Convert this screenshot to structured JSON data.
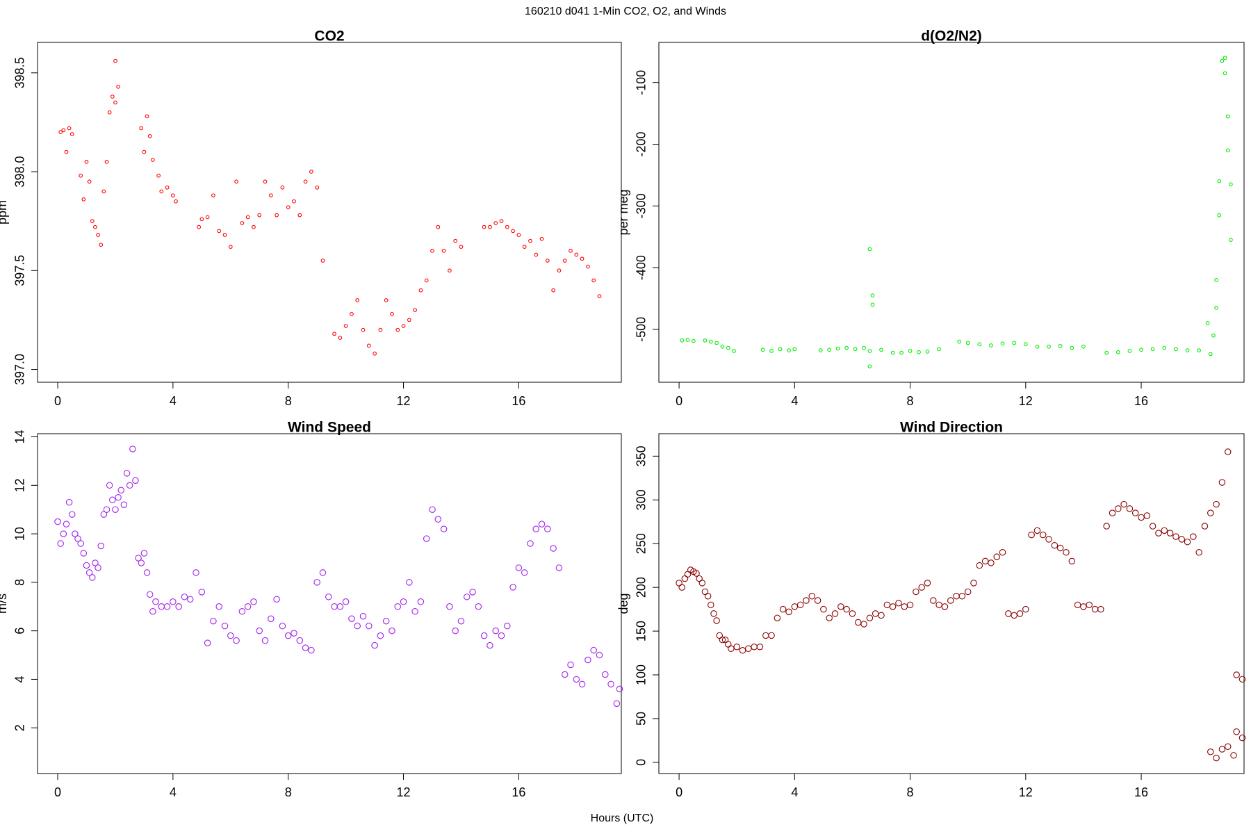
{
  "title": "160210   d041   1-Min CO2, O2, and Winds",
  "xlabel": "Hours (UTC)",
  "chart_data": [
    {
      "type": "scatter",
      "title": "CO2",
      "ylabel": "ppm",
      "color": "#ff0000",
      "xlim": [
        -0.7,
        19.56
      ],
      "xticks": [
        0,
        4,
        8,
        12,
        16
      ],
      "ylim": [
        396.935,
        398.654
      ],
      "yticks": [
        {
          "value": 397,
          "label": "397.0"
        },
        397.5,
        {
          "value": 398,
          "label": "398.0"
        },
        398.5
      ],
      "x": [
        0.1,
        0.2,
        0.3,
        0.4,
        0.5,
        0.8,
        0.9,
        1.0,
        1.1,
        1.2,
        1.3,
        1.4,
        1.5,
        1.6,
        1.7,
        1.8,
        1.9,
        2.0,
        2.1,
        2.0,
        2.9,
        3.0,
        3.1,
        3.2,
        3.3,
        3.5,
        3.6,
        3.8,
        4.0,
        4.1,
        4.9,
        5.0,
        5.2,
        5.4,
        5.6,
        5.8,
        6.0,
        6.2,
        6.4,
        6.6,
        6.8,
        7.0,
        7.2,
        7.4,
        7.6,
        7.8,
        8.0,
        8.2,
        8.4,
        8.6,
        8.8,
        9.0,
        9.2,
        9.6,
        9.8,
        10.0,
        10.2,
        10.4,
        10.6,
        10.8,
        11.0,
        11.2,
        11.4,
        11.6,
        11.8,
        12.0,
        12.2,
        12.4,
        12.6,
        12.8,
        13.0,
        13.2,
        13.4,
        13.6,
        13.8,
        14.0,
        14.8,
        15.0,
        15.2,
        15.4,
        15.6,
        15.8,
        16.0,
        16.2,
        16.4,
        16.6,
        16.8,
        17.0,
        17.2,
        17.4,
        17.6,
        17.8,
        18.0,
        18.2,
        18.4,
        18.6,
        18.8
      ],
      "values": [
        398.2,
        398.21,
        398.1,
        398.22,
        398.19,
        397.98,
        397.86,
        398.05,
        397.95,
        397.75,
        397.72,
        397.68,
        397.63,
        397.9,
        398.05,
        398.3,
        398.38,
        398.35,
        398.43,
        398.56,
        398.22,
        398.1,
        398.28,
        398.18,
        398.06,
        397.98,
        397.9,
        397.92,
        397.88,
        397.85,
        397.72,
        397.76,
        397.77,
        397.88,
        397.7,
        397.68,
        397.62,
        397.95,
        397.74,
        397.77,
        397.72,
        397.78,
        397.95,
        397.88,
        397.78,
        397.92,
        397.82,
        397.85,
        397.78,
        397.95,
        398.0,
        397.92,
        397.55,
        397.18,
        397.16,
        397.22,
        397.28,
        397.35,
        397.2,
        397.12,
        397.08,
        397.2,
        397.35,
        397.28,
        397.2,
        397.22,
        397.25,
        397.3,
        397.4,
        397.45,
        397.6,
        397.72,
        397.6,
        397.5,
        397.65,
        397.62,
        397.72,
        397.72,
        397.74,
        397.75,
        397.72,
        397.7,
        397.68,
        397.62,
        397.65,
        397.58,
        397.66,
        397.55,
        397.4,
        397.5,
        397.55,
        397.6,
        397.58,
        397.56,
        397.52,
        397.45,
        397.37
      ]
    },
    {
      "type": "scatter",
      "title": "d(O2/N2)",
      "ylabel": "per meg",
      "color": "#00ee00",
      "xlim": [
        -0.7,
        19.56
      ],
      "xticks": [
        0,
        4,
        8,
        12,
        16
      ],
      "ylim": [
        -585.7,
        -35
      ],
      "yticks": [
        -500,
        -400,
        -300,
        -200,
        -100
      ],
      "x": [
        0.1,
        0.3,
        0.5,
        0.9,
        1.1,
        1.3,
        1.5,
        1.7,
        1.9,
        2.9,
        3.2,
        3.5,
        3.8,
        4.0,
        4.9,
        5.2,
        5.5,
        5.8,
        6.1,
        6.4,
        6.6,
        6.6,
        6.7,
        6.7,
        6.6,
        7.0,
        7.4,
        7.7,
        8.0,
        8.3,
        8.6,
        9.0,
        9.7,
        10.0,
        10.4,
        10.8,
        11.2,
        11.6,
        12.0,
        12.4,
        12.8,
        13.2,
        13.6,
        14.0,
        14.8,
        15.2,
        15.6,
        16.0,
        16.4,
        16.8,
        17.2,
        17.6,
        18.0,
        18.3,
        18.5,
        18.6,
        18.6,
        18.7,
        18.7,
        18.8,
        18.9,
        18.9,
        19.0,
        19.0,
        19.1,
        19.1,
        18.4
      ],
      "values": [
        -518,
        -517,
        -519,
        -518,
        -520,
        -522,
        -528,
        -530,
        -535,
        -533,
        -535,
        -532,
        -534,
        -532,
        -534,
        -533,
        -531,
        -530,
        -532,
        -530,
        -535,
        -370,
        -445,
        -460,
        -560,
        -533,
        -538,
        -538,
        -535,
        -537,
        -536,
        -532,
        -520,
        -522,
        -524,
        -526,
        -523,
        -522,
        -524,
        -528,
        -528,
        -527,
        -530,
        -528,
        -538,
        -537,
        -535,
        -533,
        -532,
        -530,
        -532,
        -534,
        -534,
        -490,
        -510,
        -465,
        -420,
        -315,
        -260,
        -65,
        -60,
        -85,
        -155,
        -210,
        -265,
        -355,
        -540
      ]
    },
    {
      "type": "scatter",
      "title": "Wind Speed",
      "ylabel": "m/s",
      "color": "#a020f0",
      "xlim": [
        -0.7,
        19.56
      ],
      "xticks": [
        0,
        4,
        8,
        12,
        16
      ],
      "ylim": [
        0.115,
        14.13
      ],
      "yticks": [
        2,
        4,
        6,
        8,
        10,
        12,
        14
      ],
      "x": [
        0.0,
        0.1,
        0.2,
        0.3,
        0.4,
        0.5,
        0.6,
        0.7,
        0.8,
        0.9,
        1.0,
        1.1,
        1.2,
        1.3,
        1.4,
        1.5,
        1.6,
        1.7,
        1.8,
        1.9,
        2.0,
        2.1,
        2.2,
        2.3,
        2.4,
        2.5,
        2.6,
        2.7,
        2.8,
        2.9,
        3.0,
        3.1,
        3.2,
        3.3,
        3.4,
        3.6,
        3.8,
        4.0,
        4.2,
        4.4,
        4.6,
        4.8,
        5.0,
        5.2,
        5.4,
        5.6,
        5.8,
        6.0,
        6.2,
        6.4,
        6.6,
        6.8,
        7.0,
        7.2,
        7.4,
        7.6,
        7.8,
        8.0,
        8.2,
        8.4,
        8.6,
        8.8,
        9.0,
        9.2,
        9.4,
        9.6,
        9.8,
        10.0,
        10.2,
        10.4,
        10.6,
        10.8,
        11.0,
        11.2,
        11.4,
        11.6,
        11.8,
        12.0,
        12.2,
        12.4,
        12.6,
        12.8,
        13.0,
        13.2,
        13.4,
        13.6,
        13.8,
        14.0,
        14.2,
        14.4,
        14.6,
        14.8,
        15.0,
        15.2,
        15.4,
        15.6,
        15.8,
        16.0,
        16.2,
        16.4,
        16.6,
        16.8,
        17.0,
        17.2,
        17.4,
        17.6,
        17.8,
        18.0,
        18.2,
        18.4,
        18.6,
        18.8,
        19.0,
        19.2,
        19.4,
        19.5
      ],
      "values": [
        10.5,
        9.6,
        10.0,
        10.4,
        11.3,
        10.8,
        10.0,
        9.8,
        9.6,
        9.2,
        8.7,
        8.4,
        8.2,
        8.8,
        8.6,
        9.5,
        10.8,
        11.0,
        12.0,
        11.4,
        11.0,
        11.5,
        11.8,
        11.2,
        12.5,
        12.0,
        13.5,
        12.2,
        9.0,
        8.8,
        9.2,
        8.4,
        7.5,
        6.8,
        7.2,
        7.0,
        7.0,
        7.2,
        7.0,
        7.4,
        7.3,
        8.4,
        7.6,
        5.5,
        6.4,
        7.0,
        6.2,
        5.8,
        5.6,
        6.8,
        7.0,
        7.2,
        6.0,
        5.6,
        6.5,
        7.3,
        6.2,
        5.8,
        5.9,
        5.6,
        5.3,
        5.2,
        8.0,
        8.4,
        7.4,
        7.0,
        7.0,
        7.2,
        6.5,
        6.2,
        6.6,
        6.2,
        5.4,
        5.8,
        6.4,
        6.0,
        7.0,
        7.2,
        8.0,
        6.8,
        7.2,
        9.8,
        11.0,
        10.6,
        10.2,
        7.0,
        6.0,
        6.4,
        7.4,
        7.6,
        7.0,
        5.8,
        5.4,
        6.0,
        5.8,
        6.2,
        7.8,
        8.6,
        8.4,
        9.6,
        10.2,
        10.4,
        10.2,
        9.4,
        8.6,
        4.2,
        4.6,
        4.0,
        3.8,
        4.8,
        5.2,
        5.0,
        4.2,
        3.8,
        3.0,
        3.6
      ]
    },
    {
      "type": "scatter",
      "title": "Wind Direction",
      "ylabel": "deg",
      "color": "#8b0000",
      "xlim": [
        -0.7,
        19.56
      ],
      "xticks": [
        0,
        4,
        8,
        12,
        16
      ],
      "ylim": [
        -12.8,
        375.7
      ],
      "yticks": [
        0,
        50,
        100,
        150,
        200,
        250,
        300,
        350
      ],
      "x": [
        0.0,
        0.1,
        0.2,
        0.3,
        0.4,
        0.5,
        0.6,
        0.7,
        0.8,
        0.9,
        1.0,
        1.1,
        1.2,
        1.3,
        1.4,
        1.5,
        1.6,
        1.7,
        1.8,
        2.0,
        2.2,
        2.4,
        2.6,
        2.8,
        3.0,
        3.2,
        3.4,
        3.6,
        3.8,
        4.0,
        4.2,
        4.4,
        4.6,
        4.8,
        5.0,
        5.2,
        5.4,
        5.6,
        5.8,
        6.0,
        6.2,
        6.4,
        6.6,
        6.8,
        7.0,
        7.2,
        7.4,
        7.6,
        7.8,
        8.0,
        8.2,
        8.4,
        8.6,
        8.8,
        9.0,
        9.2,
        9.4,
        9.6,
        9.8,
        10.0,
        10.2,
        10.4,
        10.6,
        10.8,
        11.0,
        11.2,
        11.4,
        11.6,
        11.8,
        12.0,
        12.2,
        12.4,
        12.6,
        12.8,
        13.0,
        13.2,
        13.4,
        13.6,
        13.8,
        14.0,
        14.2,
        14.4,
        14.6,
        14.8,
        15.0,
        15.2,
        15.4,
        15.6,
        15.8,
        16.0,
        16.2,
        16.4,
        16.6,
        16.8,
        17.0,
        17.2,
        17.4,
        17.6,
        17.8,
        18.0,
        18.2,
        18.4,
        18.6,
        18.8,
        19.0,
        18.4,
        18.6,
        18.8,
        19.0,
        19.2,
        19.3,
        19.5,
        19.5,
        19.3
      ],
      "values": [
        205,
        200,
        210,
        215,
        220,
        218,
        216,
        210,
        205,
        195,
        190,
        180,
        170,
        162,
        145,
        140,
        140,
        135,
        130,
        132,
        128,
        130,
        132,
        132,
        145,
        145,
        165,
        175,
        172,
        178,
        180,
        185,
        190,
        185,
        175,
        165,
        170,
        178,
        175,
        170,
        160,
        158,
        165,
        170,
        168,
        180,
        178,
        182,
        178,
        180,
        195,
        200,
        205,
        185,
        180,
        178,
        185,
        190,
        190,
        195,
        205,
        225,
        230,
        228,
        235,
        240,
        170,
        168,
        170,
        175,
        260,
        265,
        260,
        255,
        248,
        245,
        240,
        230,
        180,
        178,
        180,
        175,
        175,
        270,
        285,
        290,
        295,
        290,
        285,
        280,
        282,
        270,
        262,
        265,
        262,
        258,
        255,
        252,
        258,
        240,
        270,
        285,
        295,
        320,
        355,
        12,
        5,
        15,
        18,
        8,
        35,
        95,
        28,
        100
      ]
    }
  ]
}
